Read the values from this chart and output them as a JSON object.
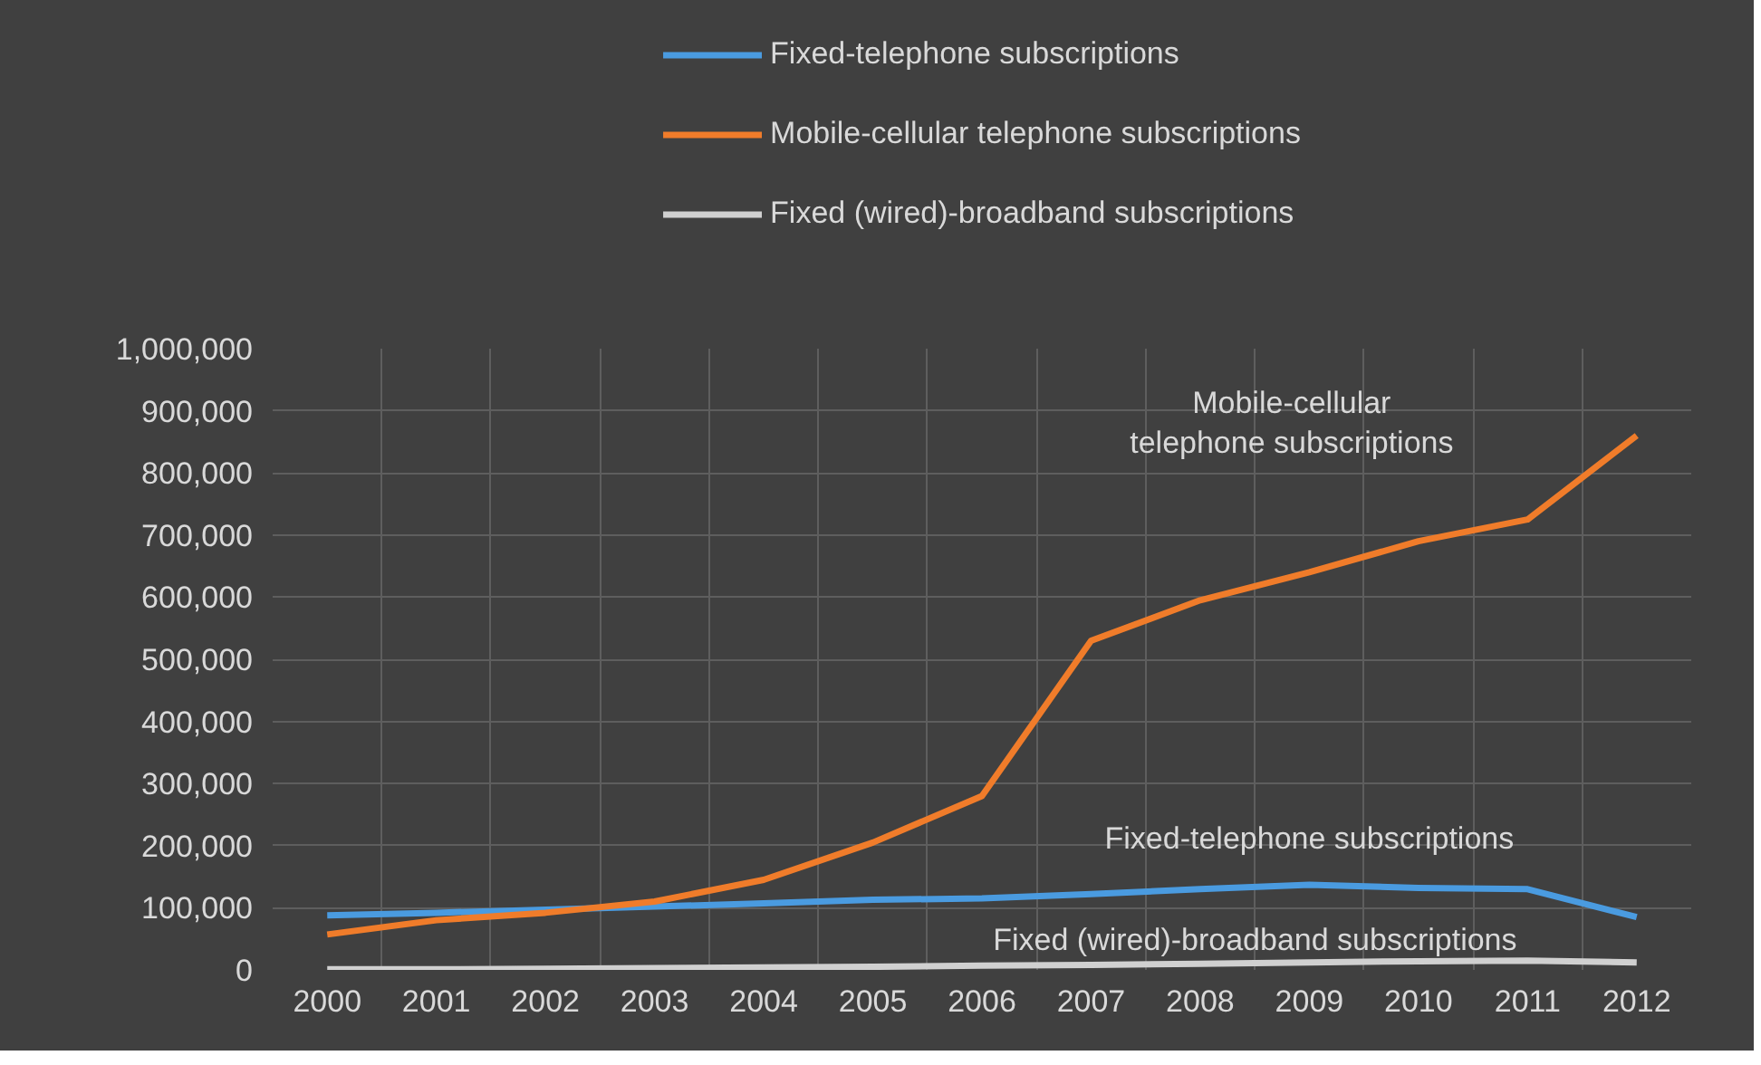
{
  "chart_data": {
    "type": "line",
    "categories": [
      "2000",
      "2001",
      "2002",
      "2003",
      "2004",
      "2005",
      "2006",
      "2007",
      "2008",
      "2009",
      "2010",
      "2011",
      "2012"
    ],
    "series": [
      {
        "name": "Fixed-telephone subscriptions",
        "color": "#4a9be0",
        "values": [
          88000,
          92000,
          97000,
          102000,
          107000,
          113000,
          115000,
          122000,
          130000,
          137000,
          132000,
          130000,
          85000
        ]
      },
      {
        "name": "Mobile-cellular telephone subscriptions",
        "color": "#f07c2a",
        "values": [
          57000,
          80000,
          92000,
          110000,
          145000,
          205000,
          280000,
          530000,
          595000,
          640000,
          690000,
          725000,
          860000
        ]
      },
      {
        "name": "Fixed (wired)-broadband subscriptions",
        "color": "#d0d0d0",
        "values": [
          1000,
          1000,
          2000,
          3000,
          4000,
          5000,
          7000,
          8000,
          10000,
          12000,
          14000,
          15000,
          12000
        ]
      }
    ],
    "ylim": [
      0,
      1000000
    ],
    "yticks": [
      {
        "value": 0,
        "label": "0"
      },
      {
        "value": 100000,
        "label": "100,000"
      },
      {
        "value": 200000,
        "label": "200,000"
      },
      {
        "value": 300000,
        "label": "300,000"
      },
      {
        "value": 400000,
        "label": "400,000"
      },
      {
        "value": 500000,
        "label": "500,000"
      },
      {
        "value": 600000,
        "label": "600,000"
      },
      {
        "value": 700000,
        "label": "700,000"
      },
      {
        "value": 800000,
        "label": "800,000"
      },
      {
        "value": 900000,
        "label": "900,000"
      },
      {
        "value": 1000000,
        "label": "1,000,000"
      }
    ],
    "grid": true,
    "legend": "top",
    "marker": "none",
    "line_style": "solid"
  }
}
